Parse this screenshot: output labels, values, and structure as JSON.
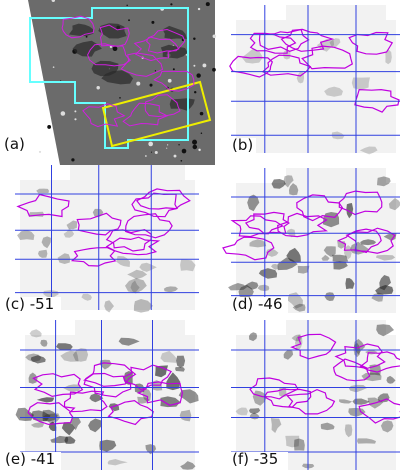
{
  "panels": [
    {
      "label": "(a)"
    },
    {
      "label": "(b)"
    },
    {
      "label": "(c) -51"
    },
    {
      "label": "(d) -46"
    },
    {
      "label": "(e) -41"
    },
    {
      "label": "(f) -35"
    }
  ]
}
